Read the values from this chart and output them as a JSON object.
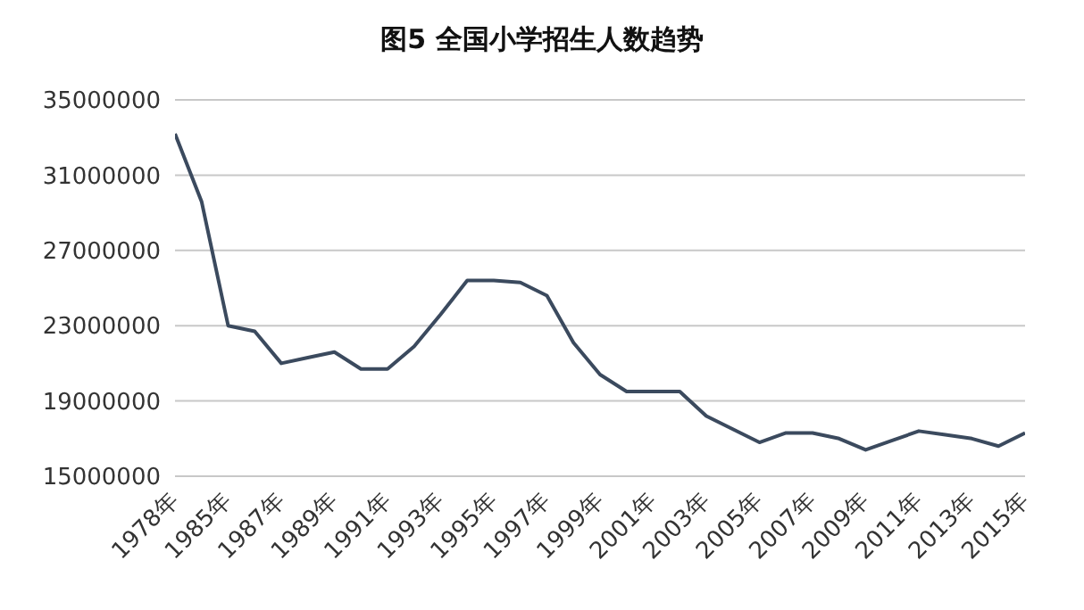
{
  "chart_data": {
    "type": "line",
    "title": "图5 全国小学招生人数趋势",
    "categories": [
      "1978年",
      null,
      "1985年",
      null,
      "1987年",
      null,
      "1989年",
      null,
      "1991年",
      null,
      "1993年",
      null,
      "1995年",
      null,
      "1997年",
      null,
      "1999年",
      null,
      "2001年",
      null,
      "2003年",
      null,
      "2005年",
      null,
      "2007年",
      null,
      "2009年",
      null,
      "2011年",
      null,
      "2013年",
      null,
      "2015年"
    ],
    "series": [
      {
        "color": "#3b4a5e",
        "values": [
          33200000,
          29600000,
          23000000,
          22700000,
          21000000,
          21300000,
          21600000,
          20700000,
          20700000,
          21900000,
          23600000,
          25400000,
          25400000,
          25300000,
          24600000,
          22100000,
          20400000,
          19500000,
          19500000,
          19500000,
          18200000,
          17500000,
          16800000,
          17300000,
          17300000,
          17000000,
          16400000,
          16900000,
          17400000,
          17200000,
          17000000,
          16600000,
          17300000
        ]
      }
    ],
    "ylim": [
      15000000,
      35000000
    ],
    "yticks": [
      15000000,
      19000000,
      23000000,
      27000000,
      31000000,
      35000000
    ],
    "grid": "y",
    "legend": false,
    "marker": "none",
    "line_style": "solid"
  }
}
